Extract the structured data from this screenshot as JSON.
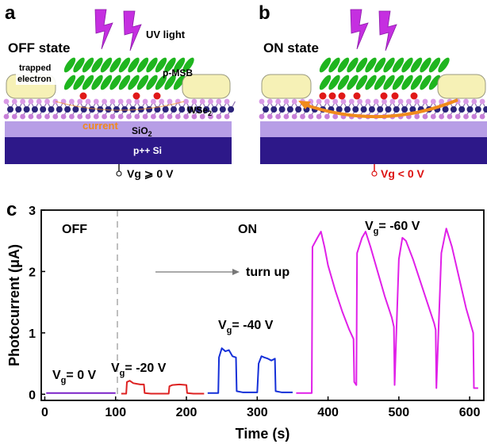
{
  "panel_a": {
    "label": "a",
    "state": "OFF state",
    "light": "UV light",
    "trap_label": [
      "trapped",
      "electron"
    ],
    "molecule": "p-MSB",
    "channel": {
      "text": "WSe",
      "sub": "2"
    },
    "current": "current",
    "oxide": {
      "text": "SiO",
      "sub": "2"
    },
    "gate": "p++ Si",
    "voltage": "Vg ⩾ 0 V"
  },
  "panel_b": {
    "label": "b",
    "state": "ON state",
    "voltage": "Vg < 0 V"
  },
  "chart_data": {
    "type": "line",
    "panel_label": "c",
    "xlabel": "Time (s)",
    "ylabel": "Photocurrent (μA)",
    "xlim": [
      -5,
      620
    ],
    "ylim": [
      -0.1,
      3
    ],
    "xticks": [
      0,
      100,
      200,
      300,
      400,
      500,
      600
    ],
    "yticks": [
      0,
      1,
      2,
      3
    ],
    "annotations": [
      "OFF",
      "ON",
      "turn up"
    ],
    "series": [
      {
        "name": {
          "symbol": "V",
          "subscript": "g",
          "text": "= 0 V"
        },
        "color": "#7b22c8",
        "x": [
          2,
          20,
          40,
          60,
          80,
          100
        ],
        "values": [
          0.02,
          0.02,
          0.02,
          0.02,
          0.02,
          0.02
        ]
      },
      {
        "name": {
          "symbol": "V",
          "subscript": "g",
          "text": "= -20 V"
        },
        "color": "#dd2222",
        "x": [
          108,
          115,
          116,
          120,
          125,
          130,
          135,
          140,
          141,
          150,
          160,
          170,
          175,
          176,
          180,
          190,
          200,
          201,
          210,
          225
        ],
        "values": [
          0.01,
          0.01,
          0.2,
          0.22,
          0.18,
          0.17,
          0.16,
          0.16,
          0.02,
          0.01,
          0.01,
          0.01,
          0.01,
          0.13,
          0.15,
          0.16,
          0.15,
          0.02,
          0.01,
          0.01
        ]
      },
      {
        "name": {
          "symbol": "V",
          "subscript": "g",
          "text": "= -40 V"
        },
        "color": "#1530d8",
        "x": [
          230,
          240,
          245,
          246,
          250,
          255,
          260,
          265,
          270,
          271,
          280,
          290,
          300,
          302,
          306,
          310,
          315,
          320,
          325,
          326,
          335,
          350
        ],
        "values": [
          0.02,
          0.02,
          0.02,
          0.6,
          0.75,
          0.7,
          0.72,
          0.62,
          0.6,
          0.05,
          0.03,
          0.03,
          0.03,
          0.5,
          0.62,
          0.6,
          0.58,
          0.55,
          0.58,
          0.05,
          0.03,
          0.03
        ]
      },
      {
        "name": {
          "symbol": "V",
          "subscript": "g",
          "text": "= -60 V"
        },
        "color": "#e020e8",
        "x": [
          355,
          370,
          377,
          378,
          385,
          390,
          395,
          400,
          410,
          420,
          430,
          436,
          437,
          440,
          441,
          448,
          453,
          460,
          470,
          480,
          490,
          493,
          494,
          500,
          505,
          510,
          520,
          530,
          540,
          550,
          552,
          553,
          560,
          567,
          575,
          585,
          595,
          605,
          606,
          612
        ],
        "values": [
          0.02,
          0.02,
          0.02,
          2.4,
          2.55,
          2.65,
          2.4,
          2.1,
          1.7,
          1.35,
          1.05,
          0.9,
          0.2,
          0.15,
          2.3,
          2.55,
          2.65,
          2.4,
          2.0,
          1.6,
          1.25,
          1.1,
          0.15,
          2.2,
          2.55,
          2.5,
          2.2,
          1.85,
          1.5,
          1.15,
          1.05,
          0.1,
          2.3,
          2.7,
          2.4,
          1.9,
          1.4,
          1.0,
          0.1,
          0.1
        ]
      }
    ]
  }
}
